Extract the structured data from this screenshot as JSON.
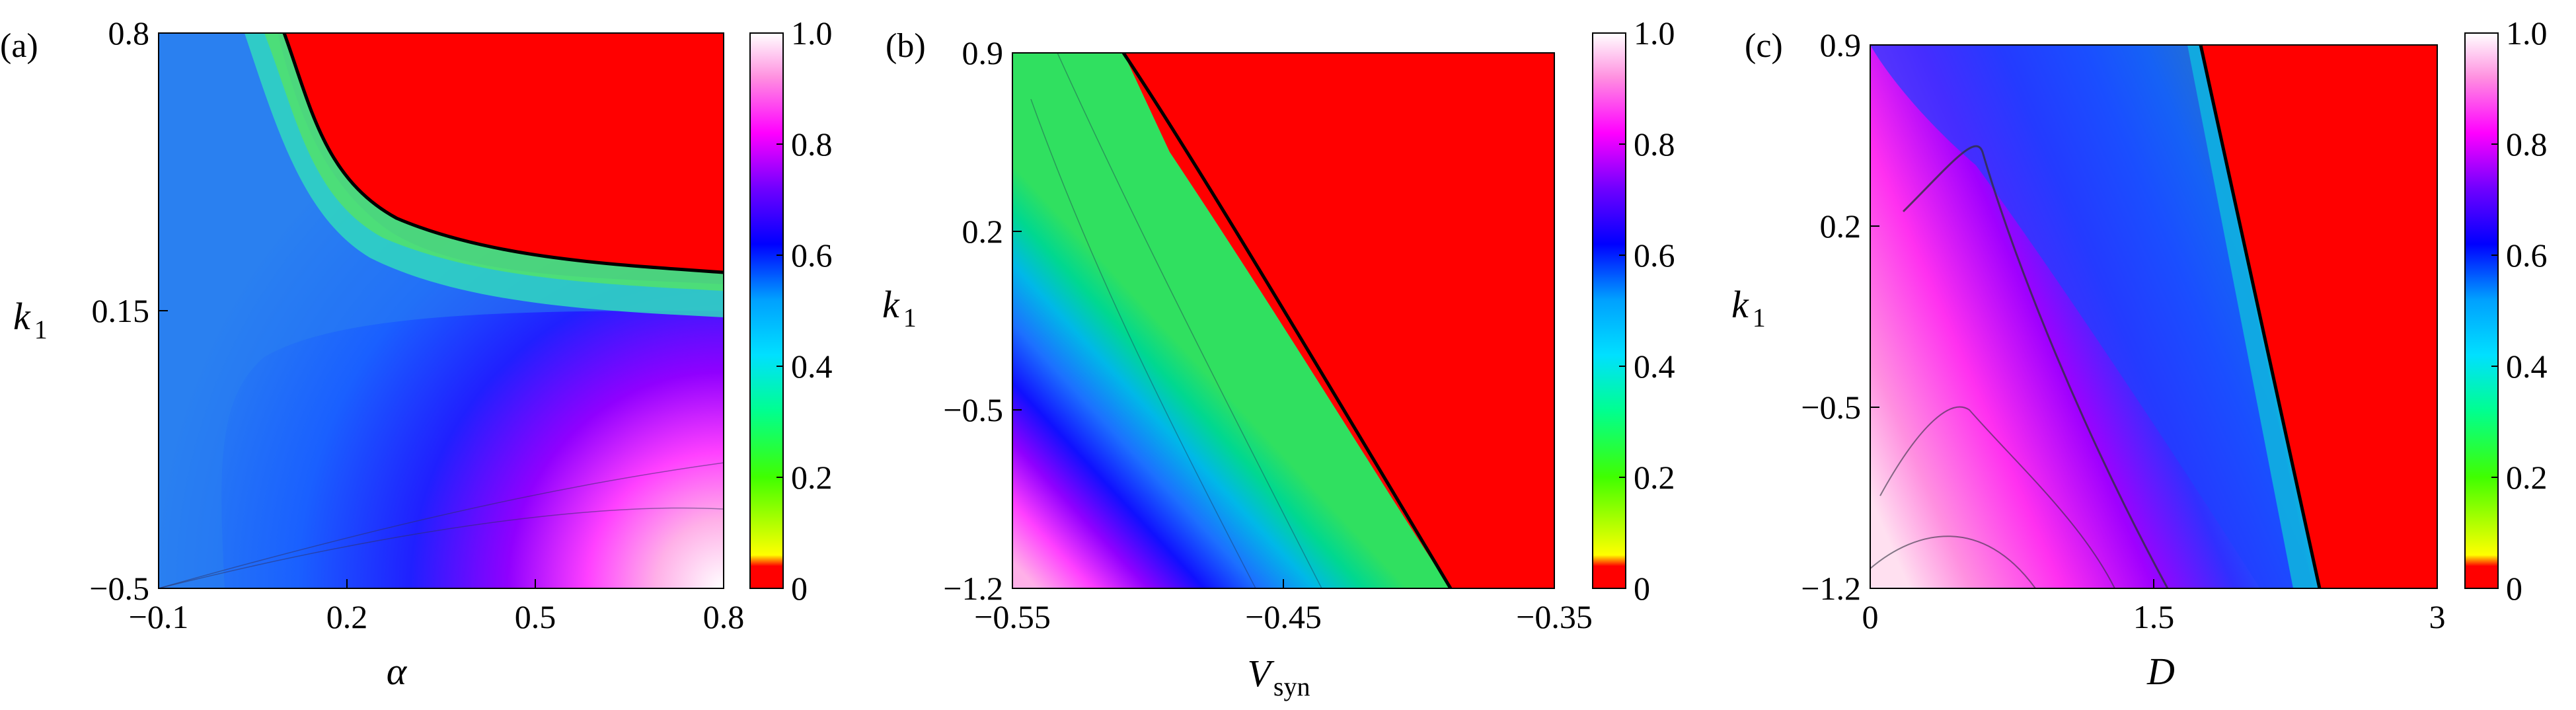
{
  "chart_data": [
    {
      "type": "heatmap",
      "panel_label": "(a)",
      "xlabel": "α",
      "ylabel": "k",
      "ylabel_sub": "1",
      "xlim": [
        -0.1,
        0.8
      ],
      "ylim": [
        -0.5,
        0.8
      ],
      "xticks": [
        -0.1,
        0.2,
        0.5,
        0.8
      ],
      "xtick_labels": [
        "−0.1",
        "0.2",
        "0.5",
        "0.8"
      ],
      "yticks": [
        -0.5,
        0.15,
        0.8
      ],
      "ytick_labels": [
        "−0.5",
        "0.15",
        "0.8"
      ],
      "colorbar": {
        "min": 0,
        "max": 1.0,
        "ticks": [
          0,
          0.2,
          0.4,
          0.6,
          0.8,
          1.0
        ],
        "tick_labels": [
          "0",
          "0.2",
          "0.4",
          "0.6",
          "0.8",
          "1.0"
        ]
      },
      "grid": false
    },
    {
      "type": "heatmap",
      "panel_label": "(b)",
      "xlabel": "V",
      "xlabel_sub": "syn",
      "ylabel": "k",
      "ylabel_sub": "1",
      "xlim": [
        -0.55,
        -0.35
      ],
      "ylim": [
        -1.2,
        0.9
      ],
      "xticks": [
        -0.55,
        -0.45,
        -0.35
      ],
      "xtick_labels": [
        "−0.55",
        "−0.45",
        "−0.35"
      ],
      "yticks": [
        -1.2,
        -0.5,
        0.2,
        0.9
      ],
      "ytick_labels": [
        "−1.2",
        "−0.5",
        "0.2",
        "0.9"
      ],
      "colorbar": {
        "min": 0,
        "max": 1.0,
        "ticks": [
          0,
          0.2,
          0.4,
          0.6,
          0.8,
          1.0
        ],
        "tick_labels": [
          "0",
          "0.2",
          "0.4",
          "0.6",
          "0.8",
          "1.0"
        ]
      },
      "grid": false
    },
    {
      "type": "heatmap",
      "panel_label": "(c)",
      "xlabel": "D",
      "ylabel": "k",
      "ylabel_sub": "1",
      "xlim": [
        0,
        3
      ],
      "ylim": [
        -1.2,
        0.9
      ],
      "xticks": [
        0,
        1.5,
        3
      ],
      "xtick_labels": [
        "0",
        "1.5",
        "3"
      ],
      "yticks": [
        -1.2,
        -0.5,
        0.2,
        0.9
      ],
      "ytick_labels": [
        "−1.2",
        "−0.5",
        "0.2",
        "0.9"
      ],
      "colorbar": {
        "min": 0,
        "max": 1.0,
        "ticks": [
          0,
          0.2,
          0.4,
          0.6,
          0.8,
          1.0
        ],
        "tick_labels": [
          "0",
          "0.2",
          "0.4",
          "0.6",
          "0.8",
          "1.0"
        ]
      },
      "grid": false
    }
  ],
  "colors": {
    "zero_region": "#ff0000",
    "colormap": [
      "#ff0000",
      "#ffff00",
      "#00ff00",
      "#00ffd0",
      "#00a0ff",
      "#0000ff",
      "#8000ff",
      "#ff00ff",
      "#ffffff"
    ]
  }
}
